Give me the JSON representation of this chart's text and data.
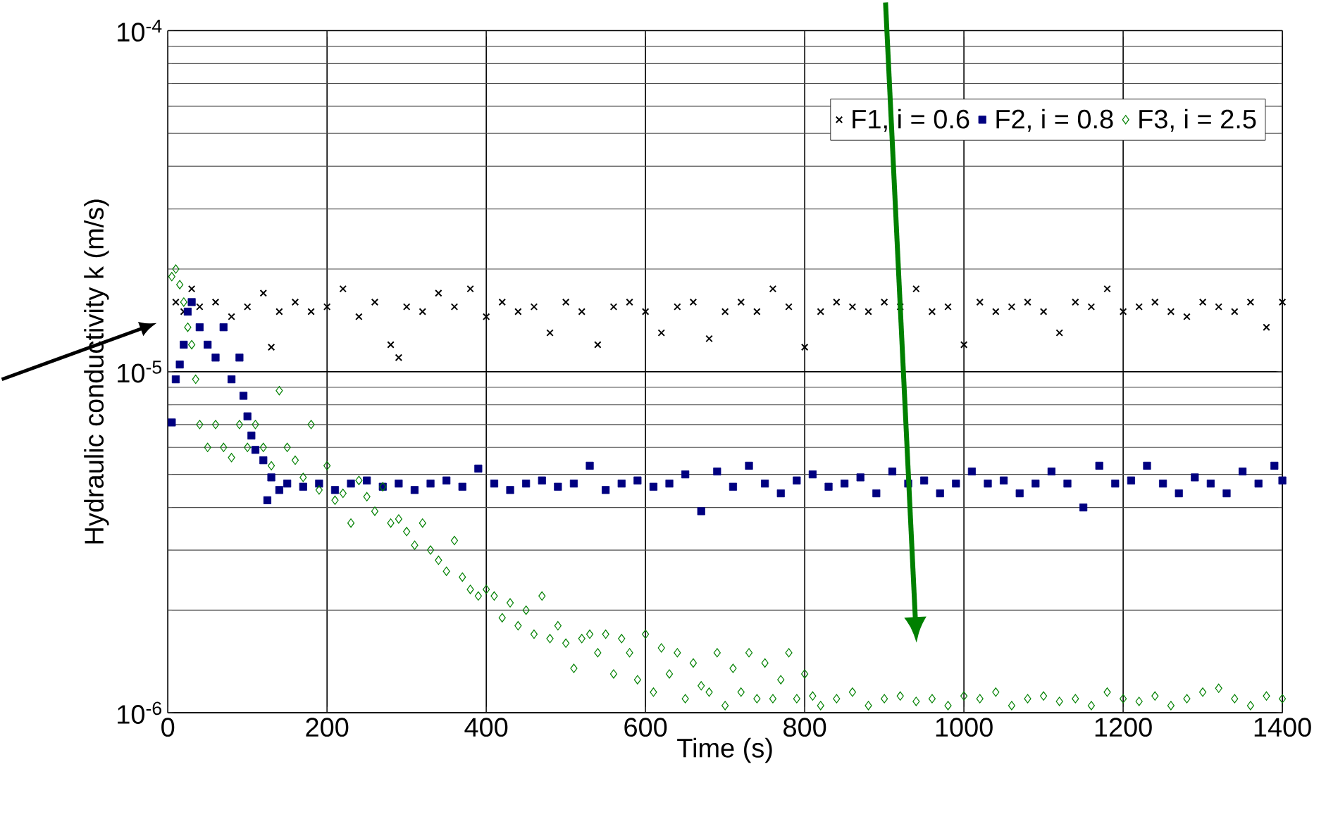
{
  "chart_data": {
    "type": "scatter",
    "xlabel": "Time (s)",
    "ylabel": "Hydraulic conductivity k (m/s)",
    "log": "y",
    "grid": true,
    "legend": "top right",
    "xlim": [
      0,
      1400
    ],
    "xticks": [
      0,
      200,
      400,
      600,
      800,
      1000,
      1200,
      1400
    ],
    "ylim": [
      1e-06,
      0.0001
    ],
    "yticks": [
      {
        "value": 1e-06,
        "label": "10$^{-6}$"
      },
      {
        "value": 1e-05,
        "label": "10$^{-5}$"
      },
      {
        "value": 0.0001,
        "label": "10$^{-4}$"
      }
    ],
    "series": [
      {
        "name": "F1, i = 0.6",
        "color": "#000000",
        "marker": "cross",
        "x": [
          10,
          20,
          30,
          40,
          60,
          80,
          100,
          120,
          130,
          140,
          160,
          180,
          200,
          220,
          240,
          260,
          280,
          290,
          300,
          320,
          340,
          360,
          380,
          400,
          420,
          440,
          460,
          480,
          500,
          520,
          540,
          560,
          580,
          600,
          620,
          640,
          660,
          680,
          700,
          720,
          740,
          760,
          780,
          800,
          820,
          840,
          860,
          880,
          900,
          920,
          940,
          960,
          980,
          1000,
          1020,
          1040,
          1060,
          1080,
          1100,
          1120,
          1140,
          1160,
          1180,
          1200,
          1220,
          1240,
          1260,
          1280,
          1300,
          1320,
          1340,
          1360,
          1380,
          1400
        ],
        "values": [
          1.6e-05,
          1.5e-05,
          1.75e-05,
          1.55e-05,
          1.6e-05,
          1.45e-05,
          1.55e-05,
          1.7e-05,
          1.18e-05,
          1.5e-05,
          1.6e-05,
          1.5e-05,
          1.55e-05,
          1.75e-05,
          1.45e-05,
          1.6e-05,
          1.2e-05,
          1.1e-05,
          1.55e-05,
          1.5e-05,
          1.7e-05,
          1.55e-05,
          1.75e-05,
          1.45e-05,
          1.6e-05,
          1.5e-05,
          1.55e-05,
          1.3e-05,
          1.6e-05,
          1.5e-05,
          1.2e-05,
          1.55e-05,
          1.6e-05,
          1.5e-05,
          1.3e-05,
          1.55e-05,
          1.6e-05,
          1.25e-05,
          1.5e-05,
          1.6e-05,
          1.5e-05,
          1.75e-05,
          1.55e-05,
          1.18e-05,
          1.5e-05,
          1.6e-05,
          1.55e-05,
          1.5e-05,
          1.6e-05,
          1.55e-05,
          1.75e-05,
          1.5e-05,
          1.55e-05,
          1.2e-05,
          1.6e-05,
          1.5e-05,
          1.55e-05,
          1.6e-05,
          1.5e-05,
          1.3e-05,
          1.6e-05,
          1.55e-05,
          1.75e-05,
          1.5e-05,
          1.55e-05,
          1.6e-05,
          1.5e-05,
          1.45e-05,
          1.6e-05,
          1.55e-05,
          1.5e-05,
          1.6e-05,
          1.35e-05,
          1.6e-05
        ]
      },
      {
        "name": "F2, i = 0.8",
        "color": "#000080",
        "marker": "square",
        "x": [
          5,
          10,
          15,
          20,
          25,
          30,
          40,
          50,
          60,
          70,
          80,
          90,
          95,
          100,
          105,
          110,
          120,
          125,
          130,
          140,
          150,
          170,
          190,
          210,
          230,
          250,
          270,
          290,
          310,
          330,
          350,
          370,
          390,
          410,
          430,
          450,
          470,
          490,
          510,
          530,
          550,
          570,
          590,
          610,
          630,
          650,
          670,
          690,
          710,
          730,
          750,
          770,
          790,
          810,
          830,
          850,
          870,
          890,
          910,
          930,
          950,
          970,
          990,
          1010,
          1030,
          1050,
          1070,
          1090,
          1110,
          1130,
          1150,
          1170,
          1190,
          1210,
          1230,
          1250,
          1270,
          1290,
          1310,
          1330,
          1350,
          1370,
          1390,
          1400
        ],
        "values": [
          7.1e-06,
          9.5e-06,
          1.05e-05,
          1.2e-05,
          1.5e-05,
          1.6e-05,
          1.35e-05,
          1.2e-05,
          1.1e-05,
          1.35e-05,
          9.5e-06,
          1.1e-05,
          8.5e-06,
          7.4e-06,
          6.5e-06,
          5.9e-06,
          5.5e-06,
          4.2e-06,
          4.9e-06,
          4.5e-06,
          4.7e-06,
          4.6e-06,
          4.7e-06,
          4.5e-06,
          4.7e-06,
          4.8e-06,
          4.6e-06,
          4.7e-06,
          4.5e-06,
          4.7e-06,
          4.8e-06,
          4.6e-06,
          5.2e-06,
          4.7e-06,
          4.5e-06,
          4.7e-06,
          4.8e-06,
          4.6e-06,
          4.7e-06,
          5.3e-06,
          4.5e-06,
          4.7e-06,
          4.8e-06,
          4.6e-06,
          4.7e-06,
          5e-06,
          3.9e-06,
          5.1e-06,
          4.6e-06,
          5.3e-06,
          4.7e-06,
          4.4e-06,
          4.8e-06,
          5e-06,
          4.6e-06,
          4.7e-06,
          4.9e-06,
          4.4e-06,
          5.1e-06,
          4.7e-06,
          4.8e-06,
          4.4e-06,
          4.7e-06,
          5.1e-06,
          4.7e-06,
          4.8e-06,
          4.4e-06,
          4.7e-06,
          5.1e-06,
          4.7e-06,
          4e-06,
          5.3e-06,
          4.7e-06,
          4.8e-06,
          5.3e-06,
          4.7e-06,
          4.4e-06,
          4.9e-06,
          4.7e-06,
          4.4e-06,
          5.1e-06,
          4.7e-06,
          5.3e-06,
          4.8e-06
        ]
      },
      {
        "name": "F3, i = 2.5",
        "color": "#008000",
        "marker": "diamond",
        "x": [
          5,
          10,
          15,
          20,
          25,
          30,
          35,
          40,
          50,
          60,
          70,
          80,
          90,
          100,
          110,
          120,
          130,
          140,
          150,
          160,
          170,
          180,
          190,
          200,
          210,
          220,
          230,
          240,
          250,
          260,
          270,
          280,
          290,
          300,
          310,
          320,
          330,
          340,
          350,
          360,
          370,
          380,
          390,
          400,
          410,
          420,
          430,
          440,
          450,
          460,
          470,
          480,
          490,
          500,
          510,
          520,
          530,
          540,
          550,
          560,
          570,
          580,
          590,
          600,
          610,
          620,
          630,
          640,
          650,
          660,
          670,
          680,
          690,
          700,
          710,
          720,
          730,
          740,
          750,
          760,
          770,
          780,
          790,
          800,
          810,
          820,
          840,
          860,
          880,
          900,
          920,
          940,
          960,
          980,
          1000,
          1020,
          1040,
          1060,
          1080,
          1100,
          1120,
          1140,
          1160,
          1180,
          1200,
          1220,
          1240,
          1260,
          1280,
          1300,
          1320,
          1340,
          1360,
          1380,
          1400
        ],
        "values": [
          1.9e-05,
          2e-05,
          1.8e-05,
          1.6e-05,
          1.35e-05,
          1.2e-05,
          9.5e-06,
          7e-06,
          6e-06,
          7e-06,
          6e-06,
          5.6e-06,
          7e-06,
          6e-06,
          7e-06,
          6e-06,
          5.3e-06,
          8.8e-06,
          6e-06,
          5.5e-06,
          4.9e-06,
          7e-06,
          4.5e-06,
          5.3e-06,
          4.2e-06,
          4.4e-06,
          3.6e-06,
          4.8e-06,
          4.3e-06,
          3.9e-06,
          4.6e-06,
          3.6e-06,
          3.7e-06,
          3.4e-06,
          3.1e-06,
          3.6e-06,
          3e-06,
          2.8e-06,
          2.6e-06,
          3.2e-06,
          2.5e-06,
          2.3e-06,
          2.2e-06,
          2.3e-06,
          2.2e-06,
          1.9e-06,
          2.1e-06,
          1.8e-06,
          2e-06,
          1.7e-06,
          2.2e-06,
          1.65e-06,
          1.8e-06,
          1.6e-06,
          1.35e-06,
          1.65e-06,
          1.7e-06,
          1.5e-06,
          1.7e-06,
          1.3e-06,
          1.65e-06,
          1.5e-06,
          1.25e-06,
          1.7e-06,
          1.15e-06,
          1.55e-06,
          1.3e-06,
          1.5e-06,
          1.1e-06,
          1.4e-06,
          1.2e-06,
          1.15e-06,
          1.5e-06,
          1.05e-06,
          1.35e-06,
          1.15e-06,
          1.5e-06,
          1.1e-06,
          1.4e-06,
          1.1e-06,
          1.25e-06,
          1.5e-06,
          1.1e-06,
          1.3e-06,
          1.12e-06,
          1.05e-06,
          1.1e-06,
          1.15e-06,
          1.05e-06,
          1.1e-06,
          1.12e-06,
          1.08e-06,
          1.1e-06,
          1.05e-06,
          1.12e-06,
          1.1e-06,
          1.15e-06,
          1.05e-06,
          1.1e-06,
          1.12e-06,
          1.08e-06,
          1.1e-06,
          1.05e-06,
          1.15e-06,
          1.1e-06,
          1.08e-06,
          1.12e-06,
          1.05e-06,
          1.1e-06,
          1.15e-06,
          1.18e-06,
          1.1e-06,
          1.05e-06,
          1.12e-06,
          1.1e-06
        ]
      }
    ]
  }
}
